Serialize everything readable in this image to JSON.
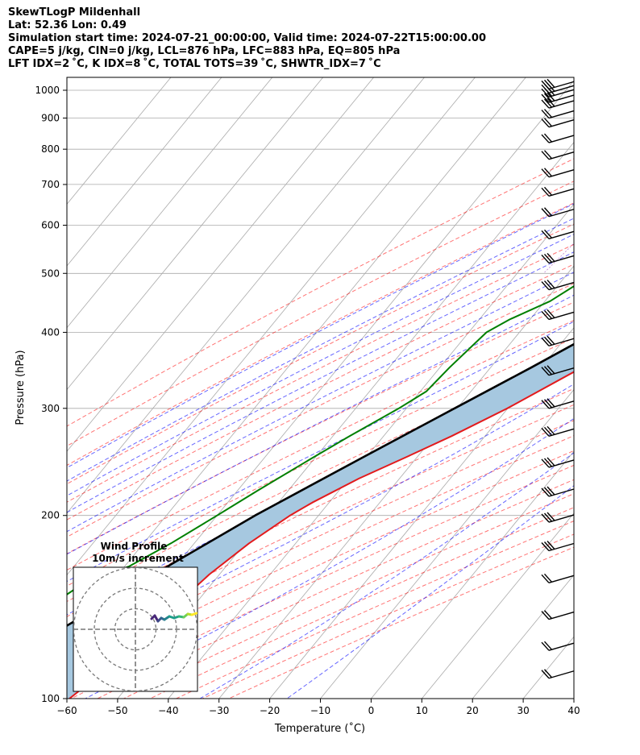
{
  "header": {
    "title": "SkewTLogP Mildenhall",
    "location": "Lat: 52.36   Lon: 0.49",
    "times": "Simulation start time: 2024-07-21_00:00:00, Valid time: 2024-07-22T15:00:00.00",
    "indices1": "CAPE=5 j/kg, CIN=0 j/kg, LCL=876 hPa, LFC=883 hPa, EQ=805 hPa",
    "indices2": "LFT IDX=2 ˚C, K IDX=8 ˚C, TOTAL TOTS=39 ˚C, SHWTR_IDX=7 ˚C"
  },
  "chart_data": {
    "type": "line",
    "chart_kind": "skew-T log-P diagram",
    "xlabel": "Temperature (˚C)",
    "ylabel": "Pressure (hPa)",
    "xlim": [
      -60,
      40
    ],
    "ylim": [
      1050,
      100
    ],
    "y_scale": "log",
    "x_ticks": [
      -60,
      -50,
      -40,
      -30,
      -20,
      -10,
      0,
      10,
      20,
      30,
      40
    ],
    "x_tick_labels": [
      "−60",
      "−50",
      "−40",
      "−30",
      "−20",
      "−10",
      "0",
      "10",
      "20",
      "30",
      "40"
    ],
    "y_ticks": [
      1000,
      900,
      800,
      700,
      600,
      500,
      400,
      300,
      200,
      100
    ],
    "y_tick_labels": [
      "1000",
      "900",
      "800",
      "700",
      "600",
      "500",
      "400",
      "300",
      "200",
      "100"
    ],
    "grid": true,
    "series": [
      {
        "role": "temperature",
        "color": "#e31a1c",
        "points": [
          [
            1000,
            24.0
          ],
          [
            950,
            20.6
          ],
          [
            900,
            17.1
          ],
          [
            883,
            16.1
          ],
          [
            850,
            15.6
          ],
          [
            800,
            15.3
          ],
          [
            750,
            15.1
          ],
          [
            700,
            14.3
          ],
          [
            650,
            13.5
          ],
          [
            600,
            11.4
          ],
          [
            550,
            8.8
          ],
          [
            500,
            4.8
          ],
          [
            450,
            -0.3
          ],
          [
            400,
            -6.0
          ],
          [
            350,
            -12.0
          ],
          [
            300,
            -20.1
          ],
          [
            270,
            -26.6
          ],
          [
            250,
            -32.0
          ],
          [
            230,
            -38.0
          ],
          [
            210,
            -43.3
          ],
          [
            200,
            -45.6
          ],
          [
            180,
            -49.2
          ],
          [
            160,
            -52.0
          ],
          [
            140,
            -53.9
          ],
          [
            130,
            -54.9
          ],
          [
            120,
            -56.0
          ],
          [
            110,
            -57.3
          ],
          [
            100,
            -59.5
          ]
        ]
      },
      {
        "role": "dewpoint",
        "color": "#008000",
        "points": [
          [
            1000,
            14.0
          ],
          [
            950,
            14.0
          ],
          [
            900,
            13.9
          ],
          [
            870,
            13.5
          ],
          [
            850,
            11.2
          ],
          [
            800,
            7.5
          ],
          [
            750,
            1.8
          ],
          [
            700,
            -5.0
          ],
          [
            650,
            -12.6
          ],
          [
            600,
            -19.0
          ],
          [
            550,
            -22.0
          ],
          [
            500,
            -24.8
          ],
          [
            450,
            -29.0
          ],
          [
            420,
            -34.0
          ],
          [
            400,
            -36.5
          ],
          [
            350,
            -38.1
          ],
          [
            320,
            -38.8
          ],
          [
            300,
            -41.5
          ],
          [
            270,
            -46.7
          ],
          [
            250,
            -50.3
          ],
          [
            220,
            -56.0
          ],
          [
            200,
            -60.0
          ],
          [
            180,
            -64.6
          ],
          [
            165,
            -69.1
          ],
          [
            155,
            -75.3
          ],
          [
            130,
            -81.5
          ],
          [
            115,
            -85.0
          ],
          [
            100,
            -89.0
          ]
        ]
      },
      {
        "role": "parcel",
        "color": "#000000",
        "points": [
          [
            1000,
            24.0
          ],
          [
            950,
            20.0
          ],
          [
            900,
            16.7
          ],
          [
            883,
            15.1
          ],
          [
            850,
            14.2
          ],
          [
            800,
            12.9
          ],
          [
            750,
            11.4
          ],
          [
            700,
            9.5
          ],
          [
            650,
            7.4
          ],
          [
            600,
            4.6
          ],
          [
            550,
            0.8
          ],
          [
            500,
            -3.8
          ],
          [
            450,
            -9.0
          ],
          [
            400,
            -15.0
          ],
          [
            350,
            -22.0
          ],
          [
            300,
            -30.5
          ],
          [
            250,
            -40.5
          ],
          [
            200,
            -52.5
          ],
          [
            150,
            -66.0
          ],
          [
            120,
            -76.0
          ],
          [
            100,
            -84.0
          ]
        ]
      }
    ],
    "shaded_area": {
      "between": [
        "temperature",
        "parcel"
      ],
      "color": "#a6c8e0"
    },
    "background_lines": [
      "dry adiabats",
      "moist adiabats",
      "mixing ratio lines",
      "skewed isotherms"
    ],
    "wind_barbs": {
      "pressures": [
        1005,
        990,
        975,
        955,
        935,
        900,
        870,
        820,
        770,
        720,
        670,
        620,
        570,
        520,
        470,
        420,
        380,
        340,
        300,
        270,
        240,
        215,
        195,
        175,
        155,
        135,
        120,
        108
      ],
      "barb_count": [
        3,
        3,
        3,
        3,
        3,
        2,
        2,
        2,
        2,
        2,
        2,
        2,
        2,
        3,
        3,
        3,
        3,
        3,
        3,
        3,
        3,
        3,
        3,
        3,
        2,
        2,
        2,
        2
      ]
    },
    "inset": {
      "title": "Wind Profile",
      "subtitle": "10m/s increment",
      "type": "hodograph",
      "rings_ms": [
        10,
        20,
        30
      ],
      "trace_colors": [
        "#482878",
        "#3e4a89",
        "#31688e",
        "#26828e",
        "#1f9e89",
        "#35b779",
        "#6ece58",
        "#b5de2b",
        "#fde725"
      ]
    }
  }
}
